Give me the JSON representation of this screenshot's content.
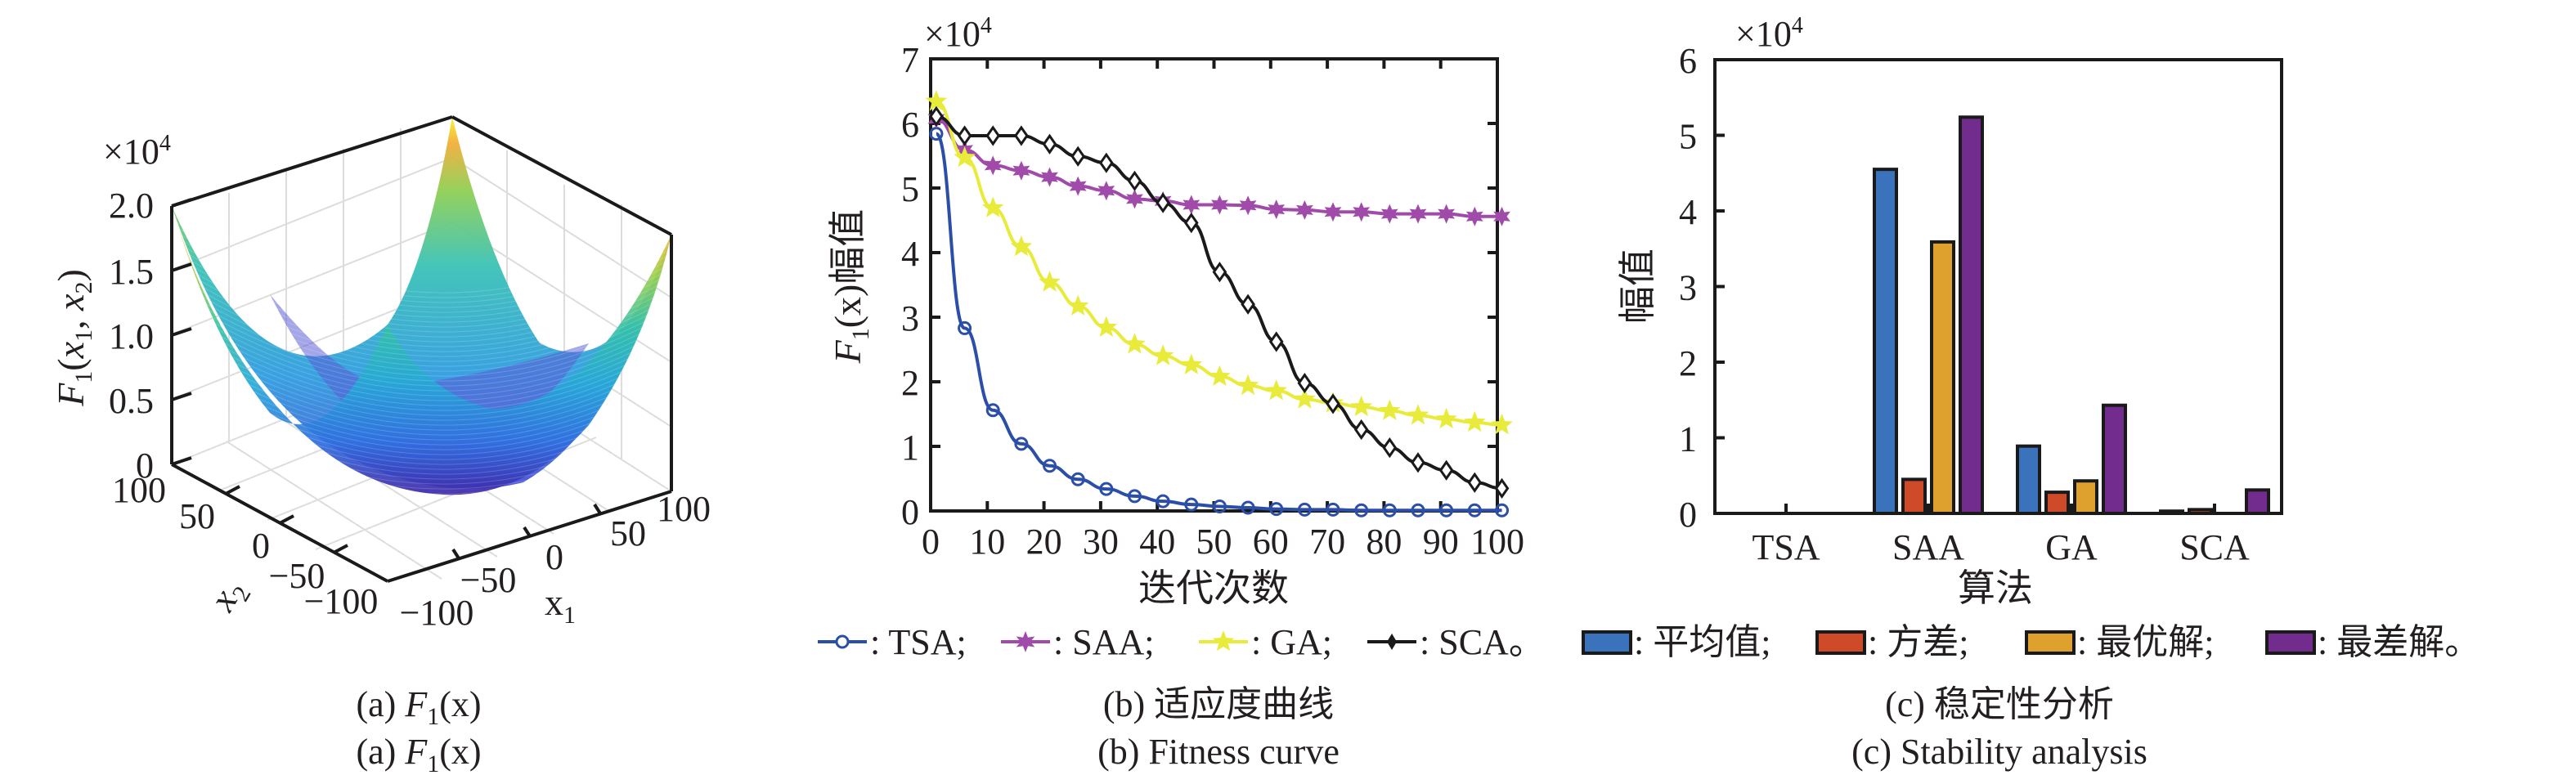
{
  "chart_data": [
    {
      "type": "surface",
      "title": "",
      "function": "F1(x1, x2) = x1^2 + x2^2",
      "zlabel": "F1(x1, x2)",
      "zlabel_parts": {
        "main": "F",
        "sub1": "1",
        "open": "(",
        "x1": "x",
        "s1": "1",
        "comma": ", ",
        "x2": "x",
        "s2": "2",
        "close": ")"
      },
      "xlabel": "x1",
      "xlabel_parts": {
        "main": "x",
        "sub": "1"
      },
      "ylabel": "x2",
      "ylabel_parts": {
        "main": "x",
        "sub": "2"
      },
      "exponent_label": "×10",
      "exponent_power": "4",
      "zlim": [
        0,
        2.0
      ],
      "xlim": [
        -100,
        100
      ],
      "ylim": [
        -100,
        100
      ],
      "z_ticks": [
        "0",
        "0.5",
        "1.0",
        "1.5",
        "2.0"
      ],
      "x1_ticks": [
        "−100",
        "−50",
        "0",
        "50",
        "100"
      ],
      "x2_ticks": [
        "−100",
        "−50",
        "0",
        "50",
        "100"
      ],
      "colormap": "parula",
      "grid": true
    },
    {
      "type": "line",
      "title": "",
      "xlabel": "迭代次数",
      "ylabel": "F1(x)幅值",
      "ylabel_parts": {
        "main": "F",
        "sub": "1",
        "arg": "(x)",
        "suffix": "幅值"
      },
      "exponent_label": "×10",
      "exponent_power": "4",
      "xlim": [
        0,
        100
      ],
      "ylim": [
        0,
        7
      ],
      "x_ticks": [
        "0",
        "10",
        "20",
        "30",
        "40",
        "50",
        "60",
        "70",
        "80",
        "90",
        "100"
      ],
      "y_ticks": [
        "0",
        "1",
        "2",
        "3",
        "4",
        "5",
        "6",
        "7"
      ],
      "x": [
        1,
        6,
        11,
        16,
        21,
        26,
        31,
        36,
        41,
        46,
        51,
        56,
        61,
        66,
        71,
        76,
        81,
        86,
        91,
        96,
        101
      ],
      "series": [
        {
          "name": "TSA",
          "color": "#2b4fa8",
          "marker": "circle",
          "values": [
            5.84,
            2.83,
            1.56,
            1.04,
            0.7,
            0.49,
            0.34,
            0.23,
            0.15,
            0.1,
            0.07,
            0.05,
            0.03,
            0.02,
            0.02,
            0.01,
            0.01,
            0.01,
            0.01,
            0.01,
            0.01
          ]
        },
        {
          "name": "SAA",
          "color": "#a04aaa",
          "marker": "hexagram",
          "values": [
            6.07,
            5.59,
            5.35,
            5.27,
            5.17,
            5.03,
            4.96,
            4.83,
            4.8,
            4.74,
            4.74,
            4.73,
            4.67,
            4.66,
            4.63,
            4.63,
            4.6,
            4.6,
            4.6,
            4.56,
            4.56
          ]
        },
        {
          "name": "GA",
          "color": "#e8eb3a",
          "marker": "pentagram",
          "values": [
            6.34,
            5.47,
            4.69,
            4.09,
            3.54,
            3.17,
            2.84,
            2.58,
            2.4,
            2.26,
            2.08,
            1.94,
            1.86,
            1.73,
            1.67,
            1.61,
            1.55,
            1.48,
            1.42,
            1.37,
            1.33
          ]
        },
        {
          "name": "SCA",
          "color": "#1a1a1a",
          "marker": "diamond",
          "values": [
            6.11,
            5.81,
            5.81,
            5.81,
            5.68,
            5.49,
            5.39,
            5.11,
            4.77,
            4.46,
            3.7,
            3.2,
            2.62,
            1.98,
            1.66,
            1.26,
            0.98,
            0.75,
            0.63,
            0.44,
            0.35
          ]
        }
      ],
      "legend": [
        {
          "label": ": TSA;"
        },
        {
          "label": ": SAA;"
        },
        {
          "label": ": GA;"
        },
        {
          "label": ": SCA。"
        }
      ],
      "legend_placement": "bottom",
      "grid": false
    },
    {
      "type": "bar",
      "title": "",
      "xlabel": "算法",
      "ylabel": "幅值",
      "exponent_label": "×10",
      "exponent_power": "4",
      "ylim": [
        0,
        6
      ],
      "y_ticks": [
        "0",
        "1",
        "2",
        "3",
        "4",
        "5",
        "6"
      ],
      "categories": [
        "TSA",
        "SAA",
        "GA",
        "SCA"
      ],
      "series": [
        {
          "name": "平均值",
          "color": "#3b72bc",
          "values": [
            0.0,
            4.55,
            0.89,
            0.03
          ]
        },
        {
          "name": "方差",
          "color": "#cf4a28",
          "values": [
            0.0,
            0.45,
            0.28,
            0.05
          ]
        },
        {
          "name": "最优解",
          "color": "#dfa12e",
          "values": [
            0.0,
            3.59,
            0.43,
            0.0
          ]
        },
        {
          "name": "最差解",
          "color": "#722c8e",
          "values": [
            0.0,
            5.24,
            1.43,
            0.31
          ]
        }
      ],
      "legend": [
        {
          "label": ": 平均值;"
        },
        {
          "label": ": 方差;"
        },
        {
          "label": ": 最优解;"
        },
        {
          "label": ": 最差解。"
        }
      ],
      "legend_placement": "bottom",
      "grid": false
    }
  ],
  "captions": {
    "a_cn": {
      "prefix": "(a) ",
      "F": "F",
      "sub": "1",
      "arg": "(x)"
    },
    "a_en": {
      "prefix": "(a) ",
      "F": "F",
      "sub": "1",
      "arg": "(x)"
    },
    "b_cn": "(b) 适应度曲线",
    "b_en": "(b) Fitness curve",
    "c_cn": "(c) 稳定性分析",
    "c_en": "(c) Stability analysis"
  }
}
